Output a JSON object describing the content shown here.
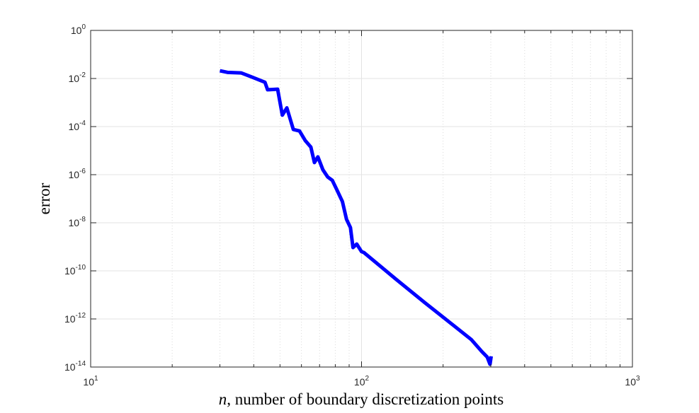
{
  "chart_data": {
    "type": "line",
    "xscale": "log",
    "yscale": "log",
    "xlabel_var": "n",
    "xlabel": ", number of boundary discretization points",
    "ylabel": "error",
    "xlim": [
      10,
      1000
    ],
    "xticks": [
      {
        "value": 10,
        "label": "10",
        "exponent": "1"
      },
      {
        "value": 100,
        "label": "10",
        "exponent": "2"
      },
      {
        "value": 1000,
        "label": "10",
        "exponent": "3"
      }
    ],
    "xminorticks": [
      20,
      30,
      40,
      50,
      60,
      70,
      80,
      90,
      200,
      300,
      400,
      500,
      600,
      700,
      800,
      900
    ],
    "ylim": [
      1e-14,
      1
    ],
    "yticks": [
      {
        "value": 1,
        "label": "10",
        "exponent": "0"
      },
      {
        "value": 0.01,
        "label": "10",
        "exponent": "-2"
      },
      {
        "value": 0.0001,
        "label": "10",
        "exponent": "-4"
      },
      {
        "value": 1e-06,
        "label": "10",
        "exponent": "-6"
      },
      {
        "value": 1e-08,
        "label": "10",
        "exponent": "-8"
      },
      {
        "value": 1e-10,
        "label": "10",
        "exponent": "-10"
      },
      {
        "value": 1e-12,
        "label": "10",
        "exponent": "-12"
      },
      {
        "value": 1e-14,
        "label": "10",
        "exponent": "-14"
      }
    ],
    "grid": true,
    "minor_grid": true,
    "series": [
      {
        "color": "#0000ff",
        "x": [
          30,
          32,
          36,
          39,
          44,
          45,
          49,
          51,
          53,
          56,
          59,
          62,
          65,
          67,
          69,
          72,
          75,
          78,
          81,
          85,
          88,
          91,
          93,
          96,
          100,
          102,
          134,
          171,
          218,
          254,
          278,
          291,
          298,
          301
        ],
        "values": [
          0.021,
          0.018,
          0.017,
          0.012,
          0.007,
          0.0034,
          0.0036,
          0.0003,
          0.0006,
          7.6e-05,
          6.6e-05,
          2.6e-05,
          1.4e-05,
          3.2e-06,
          5.5e-06,
          1.6e-06,
          8e-07,
          5.8e-07,
          2.4e-07,
          7.6e-08,
          1.4e-08,
          6.3e-09,
          9.3e-10,
          1.3e-09,
          6.3e-10,
          5.8e-10,
          4.5e-11,
          4.8e-12,
          5.5e-13,
          1.4e-13,
          4.4e-14,
          2.6e-14,
          1.3e-14,
          2.8e-14
        ]
      }
    ]
  }
}
